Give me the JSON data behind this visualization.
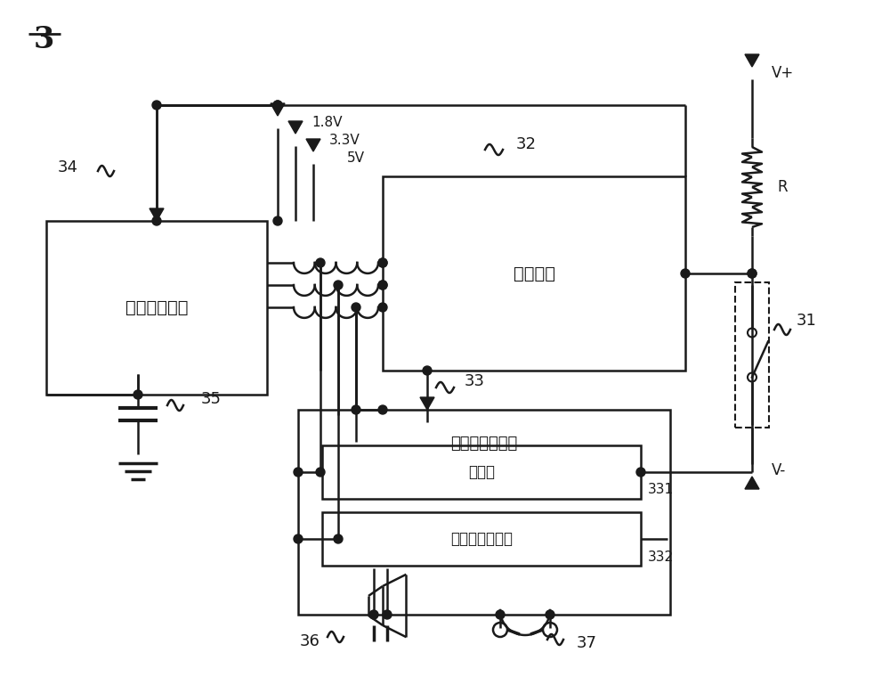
{
  "title_label": "3",
  "bg_color": "#ffffff",
  "line_color": "#1a1a1a",
  "box_pmu_label": "电源管理单元",
  "box_cpu_label": "处理单元",
  "box_codec_label": "音讯编解码单元",
  "box_timer_label": "计时器",
  "box_amp_label": "音频功率放大器",
  "label_34": "34",
  "label_35": "35",
  "label_32": "32",
  "label_33": "33",
  "label_36": "36",
  "label_37": "37",
  "label_31": "31",
  "label_331": "331",
  "label_332": "332",
  "label_1v8": "1.8V",
  "label_3v3": "3.3V",
  "label_5v": "5V",
  "label_vplus": "V+",
  "label_vminus": "V-",
  "label_R": "R",
  "figw": 10.0,
  "figh": 7.69,
  "dpi": 100
}
